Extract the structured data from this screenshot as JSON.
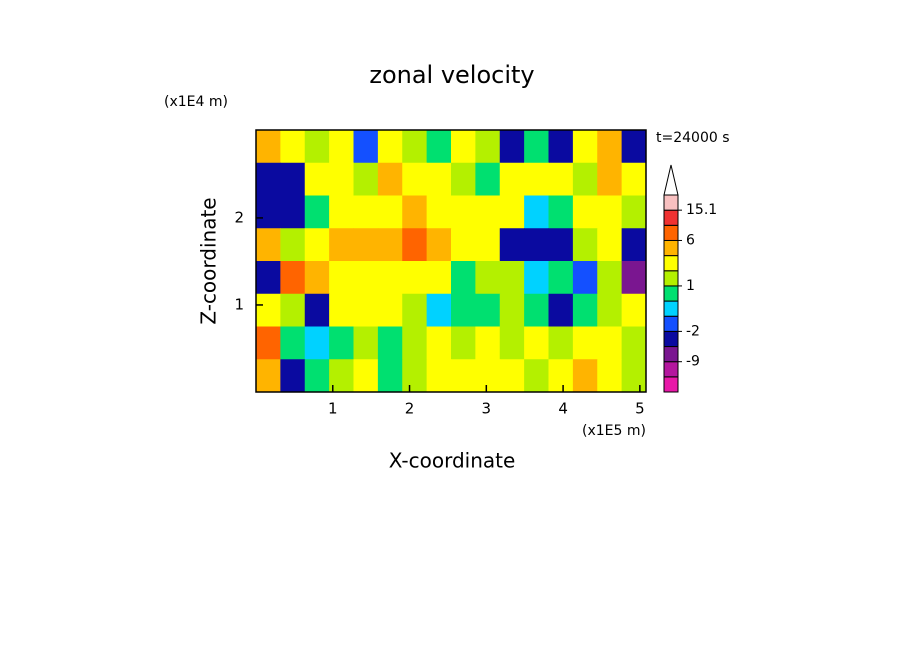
{
  "chart_data": {
    "type": "contour",
    "title": "zonal velocity",
    "annotation": "t=24000 s",
    "xlabel": "X-coordinate",
    "ylabel": "Z-coordinate",
    "x_unit": "(x1E5 m)",
    "y_unit": "(x1E4 m)",
    "xlim": [
      0,
      5.08
    ],
    "ylim": [
      0,
      3.01
    ],
    "xticks": [
      1,
      2,
      3,
      4,
      5
    ],
    "yticks": [
      1,
      2
    ],
    "z": [
      [
        4,
        2,
        1,
        3,
        -2,
        2,
        1,
        0,
        2,
        1,
        -4,
        0,
        -3,
        2,
        4,
        -4
      ],
      [
        -6,
        -4,
        3,
        2,
        1,
        4,
        2,
        2,
        1,
        0,
        2,
        3,
        2,
        1,
        5,
        3
      ],
      [
        -3,
        -6,
        0,
        3,
        2,
        3,
        4,
        2,
        2,
        3,
        2,
        -1,
        0,
        2,
        3,
        1
      ],
      [
        4,
        1,
        2,
        4,
        5,
        5,
        6,
        4,
        3,
        2,
        -4,
        -6,
        -5,
        1,
        2,
        -3
      ],
      [
        -6,
        9,
        5,
        3,
        2,
        3,
        3,
        2,
        0,
        1,
        1,
        -1,
        0,
        -2,
        1,
        -8
      ],
      [
        2,
        1,
        -4,
        2,
        3,
        2,
        1,
        -1,
        0,
        0,
        1,
        0,
        -3,
        0,
        1,
        2
      ],
      [
        6,
        0,
        -1,
        0,
        1,
        0,
        1,
        2,
        1,
        2,
        1,
        2,
        1,
        2,
        2,
        1
      ],
      [
        5,
        -3,
        0,
        1,
        2,
        0,
        1,
        2,
        3,
        2,
        2,
        1,
        2,
        4,
        3,
        1
      ]
    ],
    "levels": [
      -12,
      -9,
      -6,
      -2,
      -1,
      0,
      1,
      2,
      4,
      6,
      10,
      15.1
    ],
    "colors": [
      "#e818a8",
      "#b4169e",
      "#7a1690",
      "#0a0aa0",
      "#1450ff",
      "#00d2ff",
      "#00e070",
      "#b4f000",
      "#ffff00",
      "#ffb400",
      "#ff6400",
      "#f03232",
      "#f8c0c0"
    ],
    "over_color": "#ffffff",
    "colorbar_ticks": [
      -9,
      -2,
      1,
      6,
      15.1
    ]
  }
}
